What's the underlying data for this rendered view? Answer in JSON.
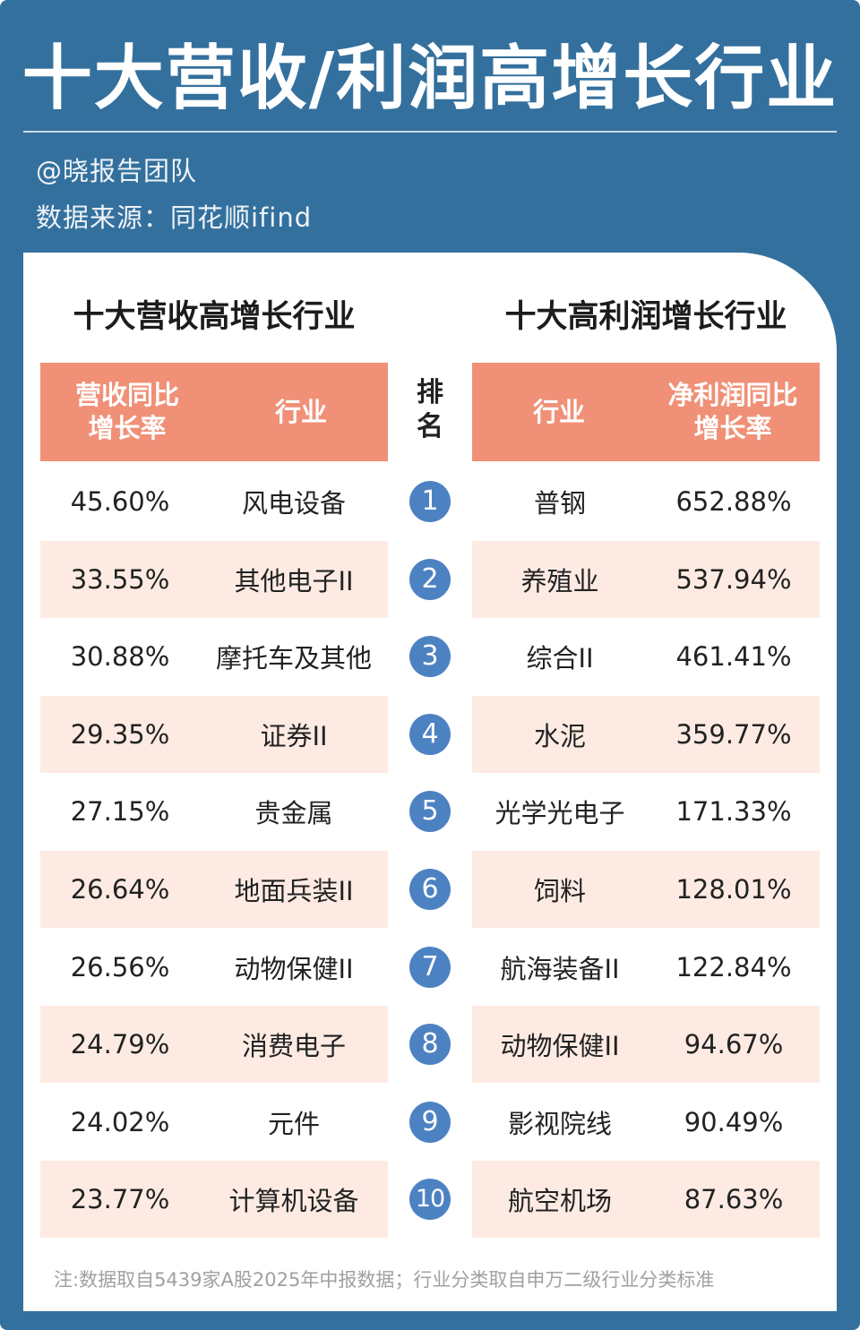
{
  "header": {
    "title": "十大营收/利润高增长行业",
    "author": "@晓报告团队",
    "source": "数据来源：同花顺ifind"
  },
  "revenue": {
    "title": "十大营收高增长行业",
    "col_growth": [
      "营收同比",
      "增长率"
    ],
    "col_industry": "行业",
    "rows": [
      {
        "growth": "45.60%",
        "industry": "风电设备"
      },
      {
        "growth": "33.55%",
        "industry": "其他电子II"
      },
      {
        "growth": "30.88%",
        "industry": "摩托车及其他"
      },
      {
        "growth": "29.35%",
        "industry": "证券II"
      },
      {
        "growth": "27.15%",
        "industry": "贵金属"
      },
      {
        "growth": "26.64%",
        "industry": "地面兵装II"
      },
      {
        "growth": "26.56%",
        "industry": "动物保健II"
      },
      {
        "growth": "24.79%",
        "industry": "消费电子"
      },
      {
        "growth": "24.02%",
        "industry": "元件"
      },
      {
        "growth": "23.77%",
        "industry": "计算机设备"
      }
    ]
  },
  "rank": {
    "header": [
      "排",
      "名"
    ],
    "values": [
      "1",
      "2",
      "3",
      "4",
      "5",
      "6",
      "7",
      "8",
      "9",
      "10"
    ]
  },
  "profit": {
    "title": "十大高利润增长行业",
    "col_industry": "行业",
    "col_growth": [
      "净利润同比",
      "增长率"
    ],
    "rows": [
      {
        "industry": "普钢",
        "growth": "652.88%"
      },
      {
        "industry": "养殖业",
        "growth": "537.94%"
      },
      {
        "industry": "综合II",
        "growth": "461.41%"
      },
      {
        "industry": "水泥",
        "growth": "359.77%"
      },
      {
        "industry": "光学光电子",
        "growth": "171.33%"
      },
      {
        "industry": "饲料",
        "growth": "128.01%"
      },
      {
        "industry": "航海装备II",
        "growth": "122.84%"
      },
      {
        "industry": "动物保健II",
        "growth": "94.67%"
      },
      {
        "industry": "影视院线",
        "growth": "90.49%"
      },
      {
        "industry": "航空机场",
        "growth": "87.63%"
      }
    ]
  },
  "footnote": "注:数据取自5439家A股2025年中报数据；行业分类取自申万二级行业分类标准",
  "colors": {
    "frame": "#34709d",
    "header_bar": "#f09077",
    "row_tint": "#fdebe3",
    "badge": "#4d82c2"
  }
}
